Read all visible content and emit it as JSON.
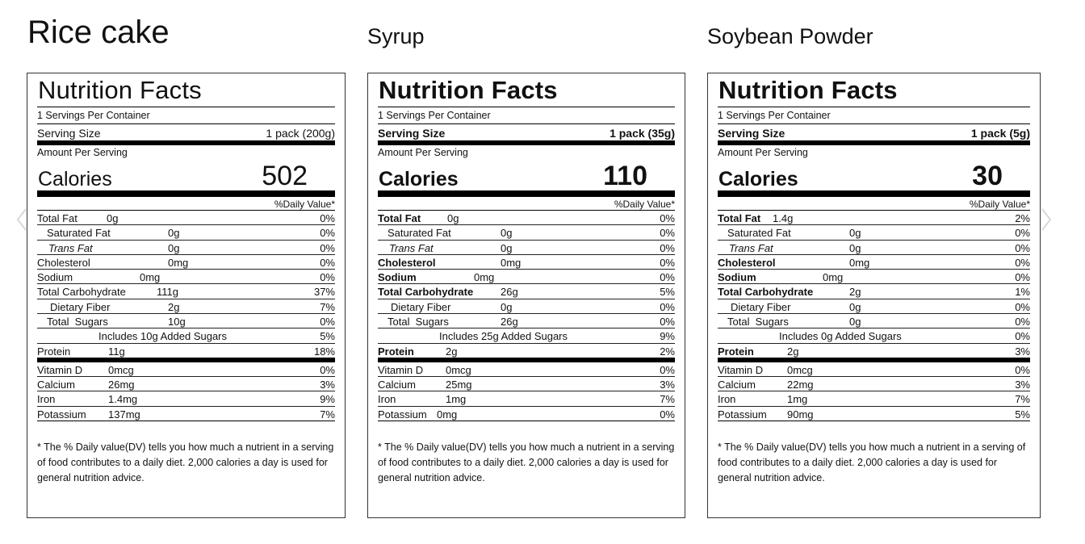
{
  "labels": [
    {
      "product": "Rice cake",
      "title": "Nutrition Facts",
      "servings_per_container": "1 Servings Per Container",
      "serving_size_label": "Serving Size",
      "serving_size_value": "1 pack (200g)",
      "amount_per_serving": "Amount Per Serving",
      "calories_label": "Calories",
      "calories_value": "502",
      "dv_header": "%Daily Value*",
      "rows": [
        {
          "name": "Total Fat",
          "amount": "0g",
          "dv": "0%"
        },
        {
          "name": "Saturated Fat",
          "amount": "0g",
          "dv": "0%"
        },
        {
          "name": "Trans Fat",
          "amount": "0g",
          "dv": "0%"
        },
        {
          "name": "Cholesterol",
          "amount": "0mg",
          "dv": "0%"
        },
        {
          "name": "Sodium",
          "amount": "0mg",
          "dv": "0%"
        },
        {
          "name": "Total Carbohydrate",
          "amount": "111g",
          "dv": "37%"
        },
        {
          "name": "Dietary Fiber",
          "amount": "2g",
          "dv": "7%"
        },
        {
          "name": "Total  Sugars",
          "amount": "10g",
          "dv": "0%"
        },
        {
          "name": "Includes 10g Added Sugars",
          "amount": "",
          "dv": "5%"
        },
        {
          "name": "Protein",
          "amount": "11g",
          "dv": "18%"
        },
        {
          "name": "Vitamin D",
          "amount": "0mcg",
          "dv": "0%"
        },
        {
          "name": "Calcium",
          "amount": "26mg",
          "dv": "3%"
        },
        {
          "name": "Iron",
          "amount": "1.4mg",
          "dv": "9%"
        },
        {
          "name": "Potassium",
          "amount": "137mg",
          "dv": "7%"
        }
      ],
      "footnote": "* The % Daily value(DV) tells you how much a nutrient in a serving of food contributes to a daily diet. 2,000 calories a day is used for general nutrition advice."
    },
    {
      "product": "Syrup",
      "title": "Nutrition Facts",
      "servings_per_container": "1 Servings Per Container",
      "serving_size_label": "Serving Size",
      "serving_size_value": "1 pack (35g)",
      "amount_per_serving": "Amount Per Serving",
      "calories_label": "Calories",
      "calories_value": "110",
      "dv_header": "%Daily Value*",
      "rows": [
        {
          "name": "Total Fat",
          "amount": "0g",
          "dv": "0%"
        },
        {
          "name": "Saturated Fat",
          "amount": "0g",
          "dv": "0%"
        },
        {
          "name": "Trans Fat",
          "amount": "0g",
          "dv": "0%"
        },
        {
          "name": "Cholesterol",
          "amount": "0mg",
          "dv": "0%"
        },
        {
          "name": "Sodium",
          "amount": "0mg",
          "dv": "0%"
        },
        {
          "name": "Total Carbohydrate",
          "amount": "26g",
          "dv": "5%"
        },
        {
          "name": "Dietary Fiber",
          "amount": "0g",
          "dv": "0%"
        },
        {
          "name": "Total  Sugars",
          "amount": "26g",
          "dv": "0%"
        },
        {
          "name": "Includes 25g Added Sugars",
          "amount": "",
          "dv": "9%"
        },
        {
          "name": "Protein",
          "amount": "2g",
          "dv": "2%"
        },
        {
          "name": "Vitamin D",
          "amount": "0mcg",
          "dv": "0%"
        },
        {
          "name": "Calcium",
          "amount": "25mg",
          "dv": "3%"
        },
        {
          "name": "Iron",
          "amount": "1mg",
          "dv": "7%"
        },
        {
          "name": "Potassium",
          "amount": "0mg",
          "dv": "0%"
        }
      ],
      "footnote": "* The % Daily value(DV) tells you how much a nutrient in a serving of food contributes to a daily diet. 2,000 calories a day is used for general nutrition advice."
    },
    {
      "product": "Soybean Powder",
      "title": "Nutrition Facts",
      "servings_per_container": "1 Servings Per Container",
      "serving_size_label": "Serving Size",
      "serving_size_value": "1 pack (5g)",
      "amount_per_serving": "Amount Per Serving",
      "calories_label": "Calories",
      "calories_value": "30",
      "dv_header": "%Daily Value*",
      "rows": [
        {
          "name": "Total Fat",
          "amount": "1.4g",
          "dv": "2%"
        },
        {
          "name": "Saturated Fat",
          "amount": "0g",
          "dv": "0%"
        },
        {
          "name": "Trans Fat",
          "amount": "0g",
          "dv": "0%"
        },
        {
          "name": "Cholesterol",
          "amount": "0mg",
          "dv": "0%"
        },
        {
          "name": "Sodium",
          "amount": "0mg",
          "dv": "0%"
        },
        {
          "name": "Total Carbohydrate",
          "amount": "2g",
          "dv": "1%"
        },
        {
          "name": "Dietary Fiber",
          "amount": "0g",
          "dv": "0%"
        },
        {
          "name": "Total  Sugars",
          "amount": "0g",
          "dv": "0%"
        },
        {
          "name": "Includes 0g Added Sugars",
          "amount": "",
          "dv": "0%"
        },
        {
          "name": "Protein",
          "amount": "2g",
          "dv": "3%"
        },
        {
          "name": "Vitamin D",
          "amount": "0mcg",
          "dv": "0%"
        },
        {
          "name": "Calcium",
          "amount": "22mg",
          "dv": "3%"
        },
        {
          "name": "Iron",
          "amount": "1mg",
          "dv": "7%"
        },
        {
          "name": "Potassium",
          "amount": "90mg",
          "dv": "5%"
        }
      ],
      "footnote": "* The % Daily value(DV) tells you how much a nutrient in a serving of food contributes to a daily diet. 2,000 calories a day is used for general nutrition advice."
    }
  ],
  "carousel": {
    "prev_icon": "chevron-left-icon",
    "next_icon": "chevron-right-icon",
    "arrow_color": "#d8d8d8"
  }
}
